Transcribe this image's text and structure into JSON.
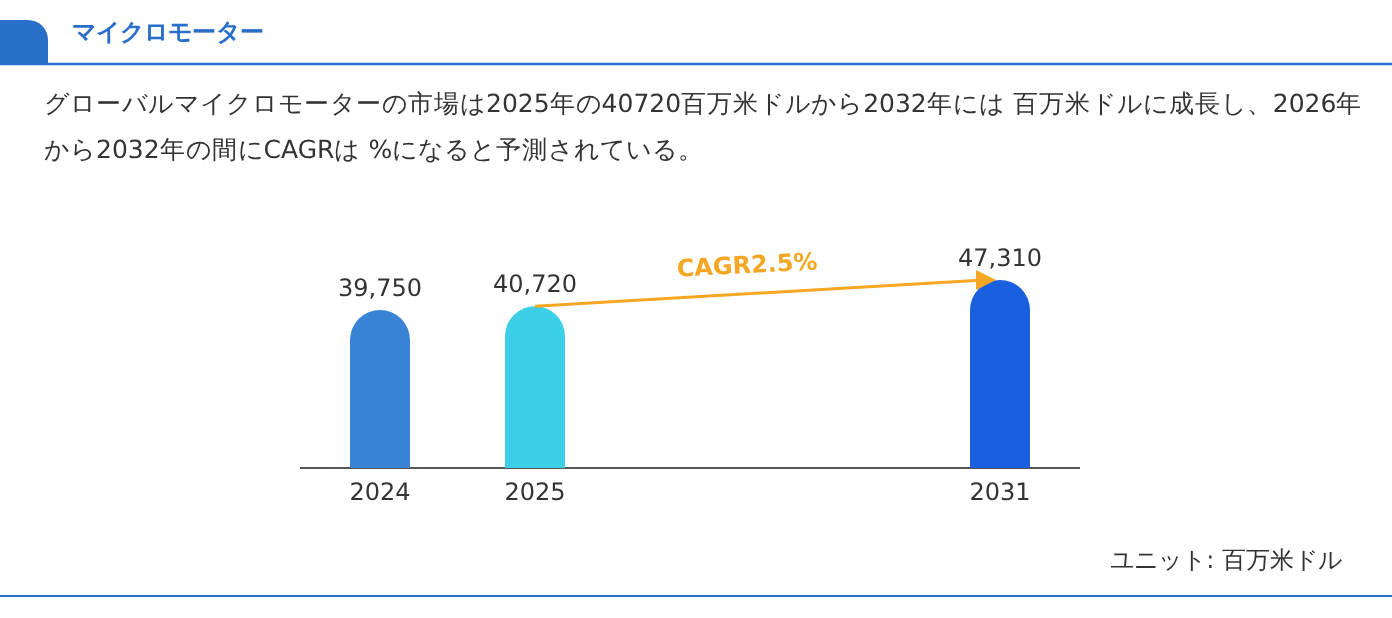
{
  "chart_data": {
    "type": "bar",
    "title": "マイクロモーター",
    "subtitle": "グローバルマイクロモーターの市場は2025年の40720百万米ドルから2032年には 百万米ドルに成長し、2026年から2032年の間にCAGRは %になると予測されている。",
    "categories": [
      "2024",
      "2025",
      null,
      null,
      "2031"
    ],
    "values": [
      39750,
      40720,
      null,
      null,
      47310
    ],
    "colors": [
      "#3a84d6",
      "#3ecfe8",
      null,
      null,
      "#1a5fe0"
    ],
    "value_labels": [
      "39,750",
      "40,720",
      null,
      null,
      "47,310"
    ],
    "annotations": [
      "CAGR2.5%",
      "ユニット: 百万米ドル"
    ]
  }
}
